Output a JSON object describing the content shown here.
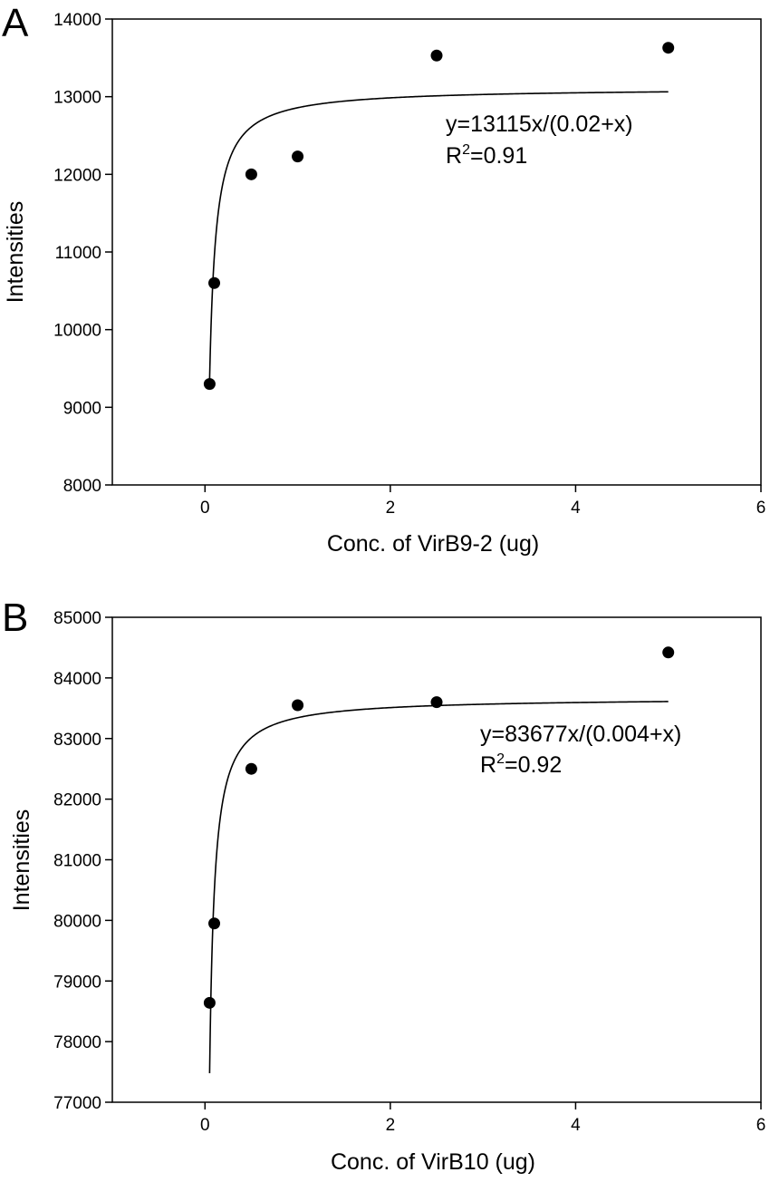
{
  "chart_data": [
    {
      "type": "scatter",
      "panel_label": "A",
      "xlabel": "Conc. of VirB9-2 (ug)",
      "ylabel": "Intensities",
      "xlim": [
        -1,
        6
      ],
      "ylim": [
        8000,
        14000
      ],
      "xticks": [
        0,
        2,
        4,
        6
      ],
      "yticks": [
        8000,
        9000,
        10000,
        11000,
        12000,
        13000,
        14000
      ],
      "grid": false,
      "series": [
        {
          "points": [
            {
              "x": 0.05,
              "y": 9300
            },
            {
              "x": 0.1,
              "y": 10600
            },
            {
              "x": 0.5,
              "y": 12000
            },
            {
              "x": 1.0,
              "y": 12230
            },
            {
              "x": 2.5,
              "y": 13530
            },
            {
              "x": 5.0,
              "y": 13630
            }
          ]
        }
      ],
      "fit": {
        "a": 13115,
        "b": 0.02,
        "x_start": 0.05,
        "x_end": 5.0
      },
      "annotations": {
        "equation": "y=13115x/(0.02+x)",
        "r2_prefix": "R",
        "r2_sup": "2",
        "r2_value": "=0.91"
      }
    },
    {
      "type": "scatter",
      "panel_label": "B",
      "xlabel": "Conc. of VirB10 (ug)",
      "ylabel": "Intensities",
      "xlim": [
        -1,
        6
      ],
      "ylim": [
        77000,
        85000
      ],
      "xticks": [
        0,
        2,
        4,
        6
      ],
      "yticks": [
        77000,
        78000,
        79000,
        80000,
        81000,
        82000,
        83000,
        84000,
        85000
      ],
      "grid": false,
      "series": [
        {
          "points": [
            {
              "x": 0.05,
              "y": 78640
            },
            {
              "x": 0.1,
              "y": 79950
            },
            {
              "x": 0.5,
              "y": 82500
            },
            {
              "x": 1.0,
              "y": 83550
            },
            {
              "x": 2.5,
              "y": 83600
            },
            {
              "x": 5.0,
              "y": 84420
            }
          ]
        }
      ],
      "fit": {
        "a": 83677,
        "b": 0.004,
        "x_start": 0.05,
        "x_end": 5.0
      },
      "annotations": {
        "equation": "y=83677x/(0.004+x)",
        "r2_prefix": "R",
        "r2_sup": "2",
        "r2_value": "=0.92"
      }
    }
  ]
}
